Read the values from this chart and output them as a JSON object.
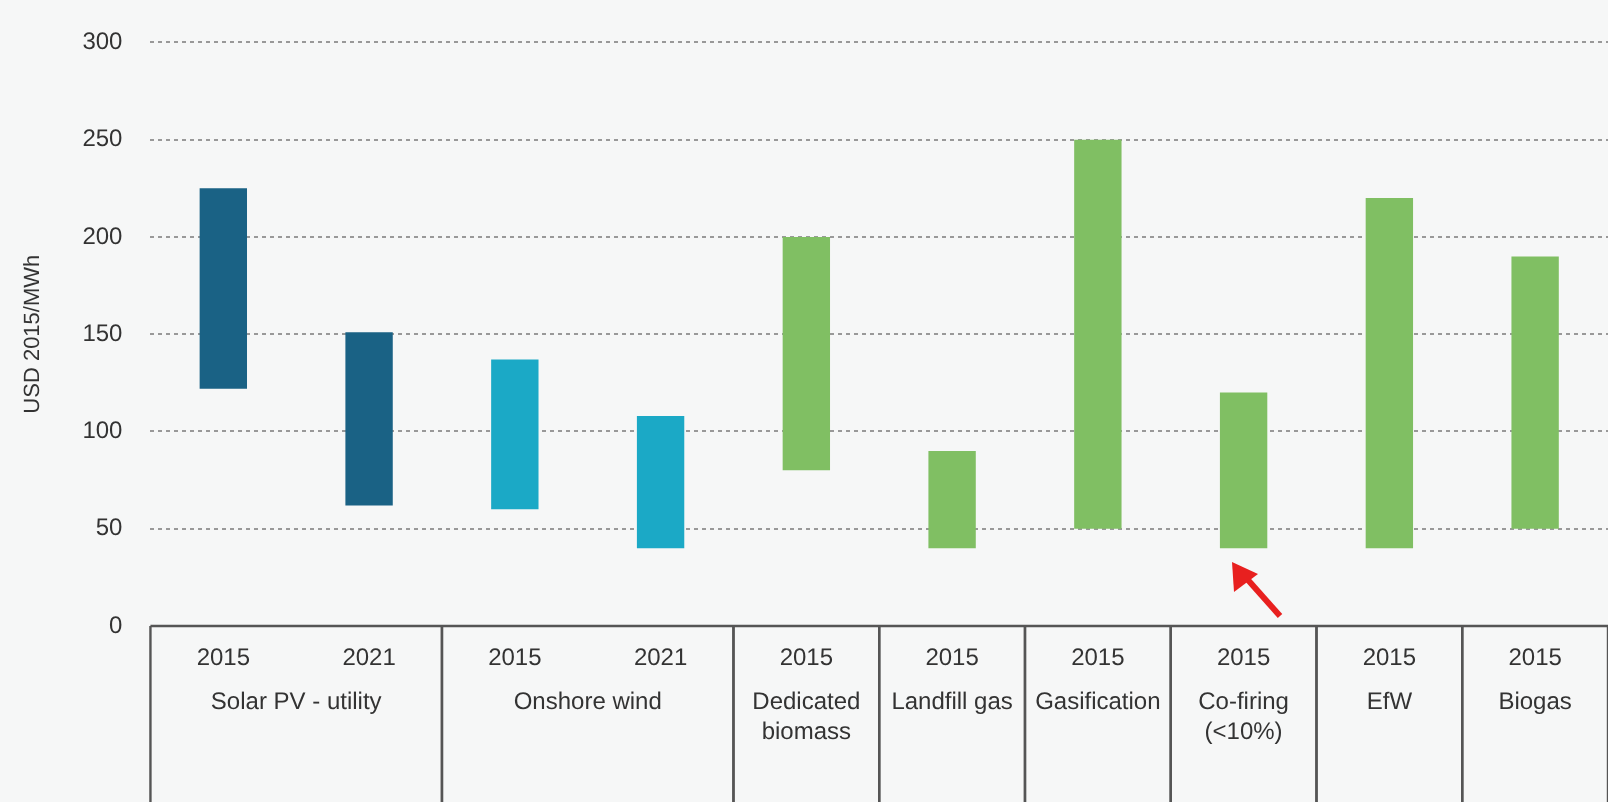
{
  "chart_data": {
    "type": "bar",
    "ylabel": "USD 2015/MWh",
    "categories": [
      "2015",
      "2021",
      "2015",
      "2021",
      "2015",
      "2015",
      "2015",
      "2015",
      "2015",
      "2015"
    ],
    "base": [
      122,
      62,
      60,
      40,
      80,
      40,
      50,
      40,
      40,
      50
    ],
    "values": [
      103,
      89,
      77,
      68,
      120,
      50,
      200,
      80,
      180,
      140
    ],
    "colors": [
      "#1a6285",
      "#1a6285",
      "#1ba9c6",
      "#1ba9c6",
      "#80bf63",
      "#80bf63",
      "#80bf63",
      "#80bf63",
      "#80bf63",
      "#80bf63"
    ],
    "ylim": [
      0,
      300
    ],
    "yticks": [
      0,
      50,
      100,
      150,
      200,
      250,
      300
    ],
    "grid": "y",
    "legend": false,
    "annotations": [
      "Solar PV - utility",
      "Onshore wind",
      "Dedicated biomass",
      "Landfill gas",
      "Gasification",
      "Co-firing (<10%)",
      "EfW",
      "Biogas"
    ]
  }
}
